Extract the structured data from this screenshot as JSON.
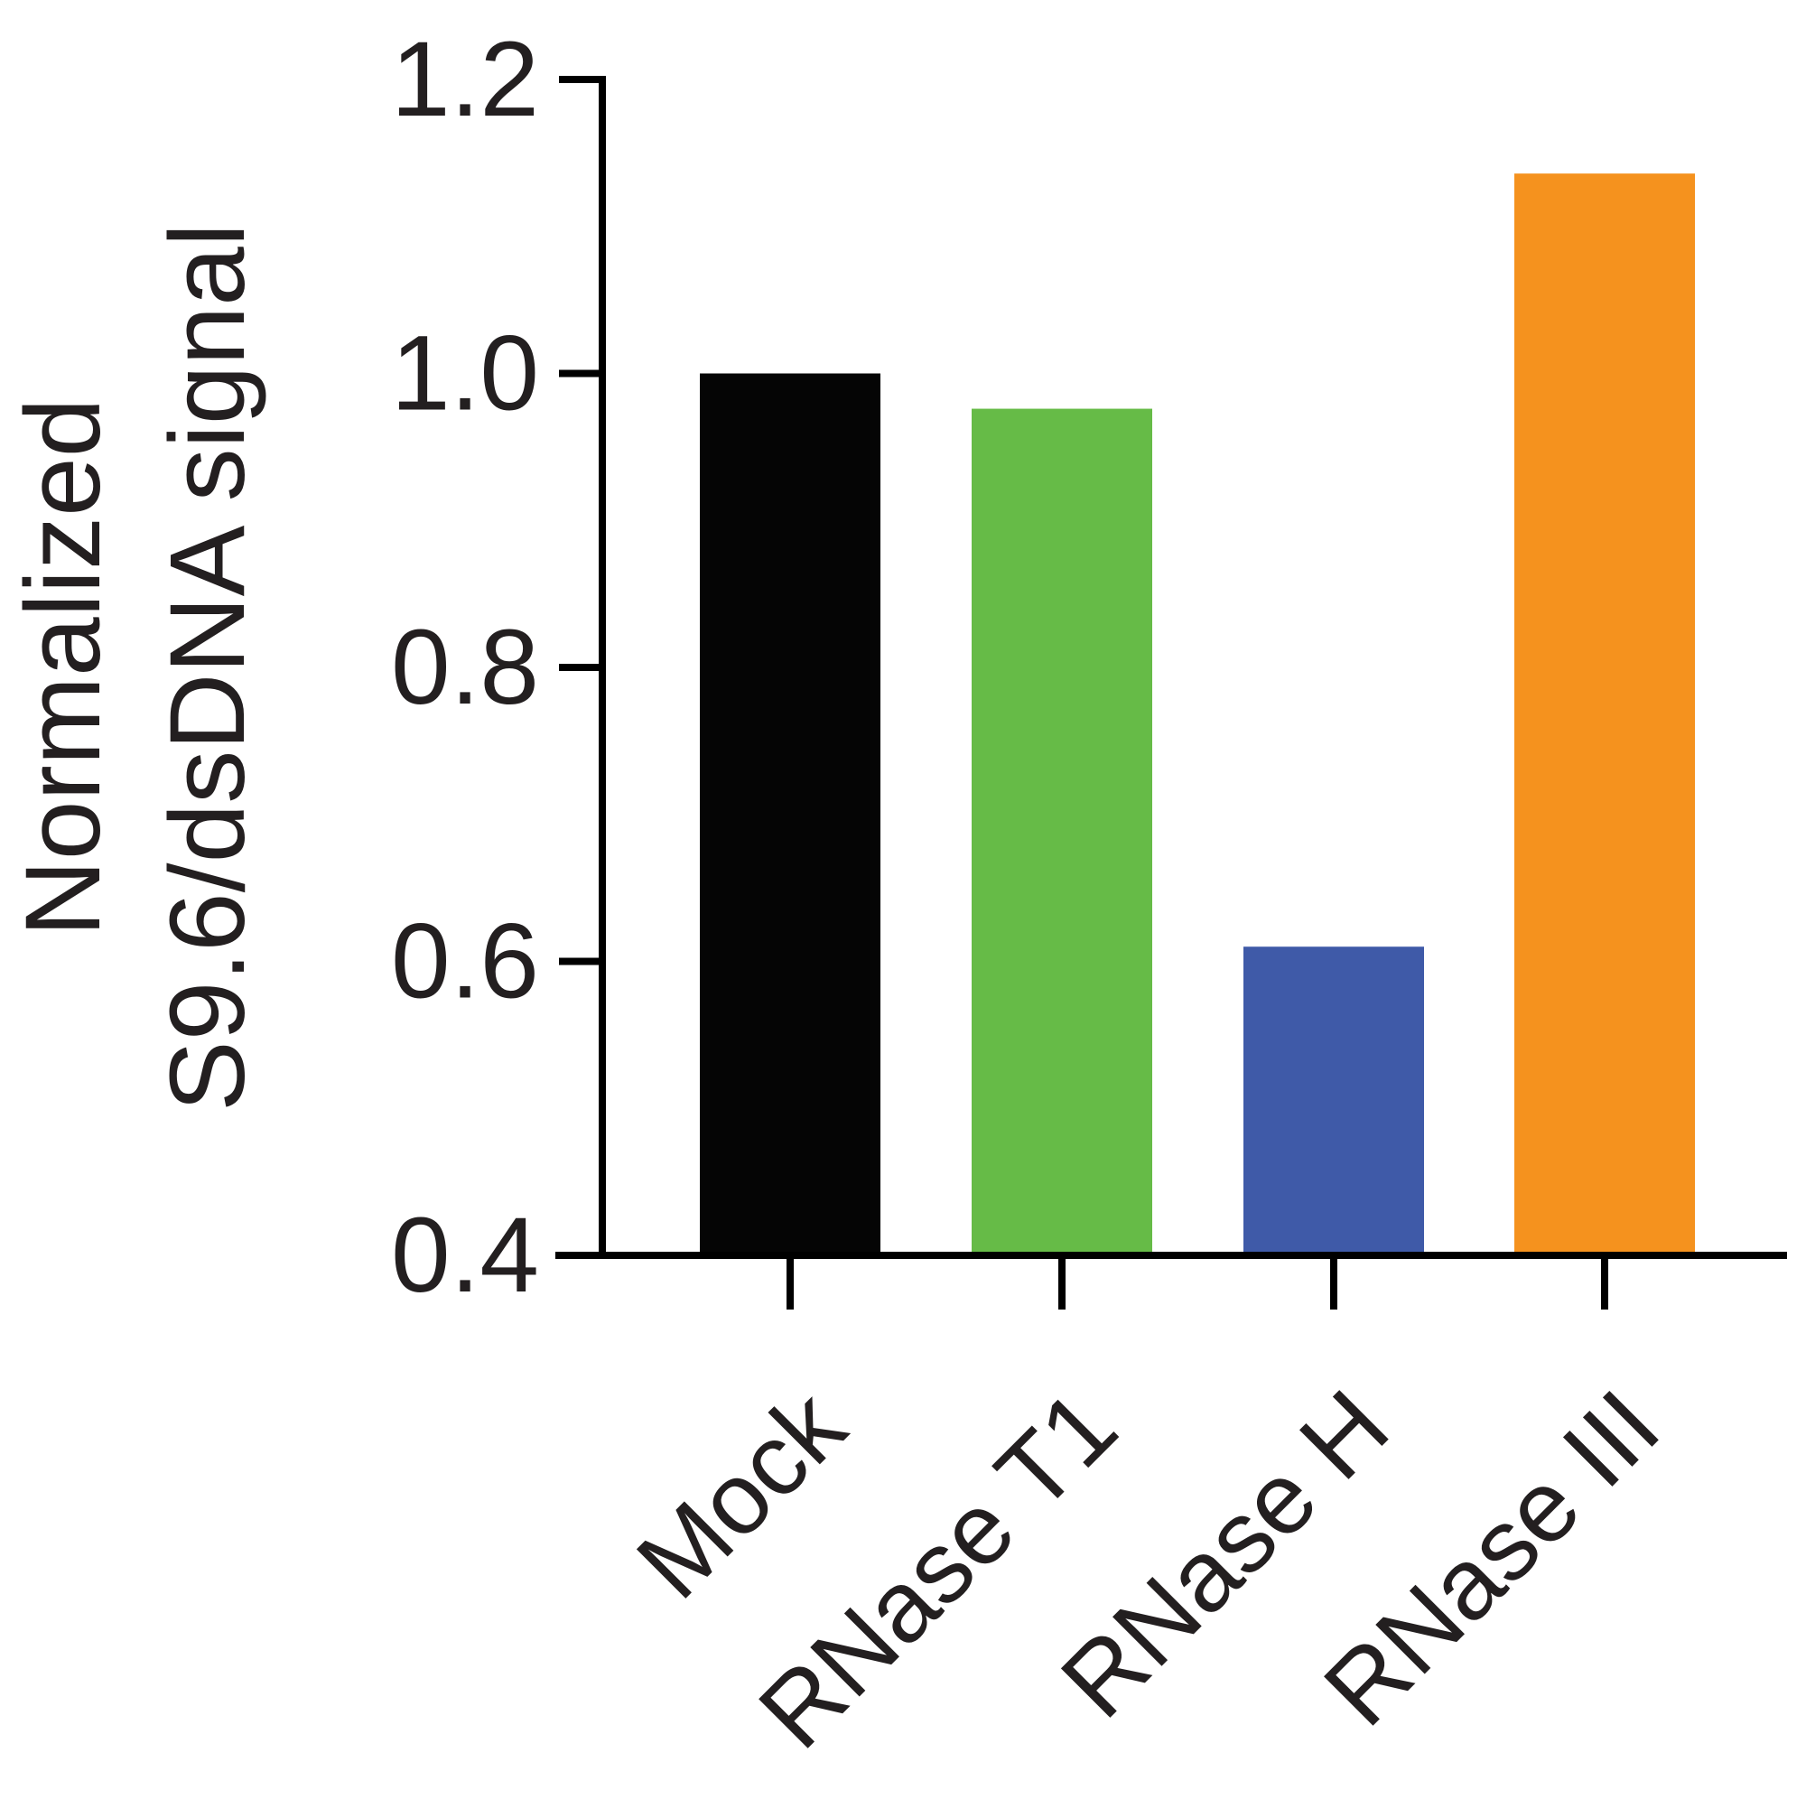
{
  "chart_data": {
    "type": "bar",
    "title": "",
    "xlabel": "",
    "ylabel": [
      "Normalized",
      "S9.6/dsDNA signal"
    ],
    "categories": [
      "Mock",
      "RNase T1",
      "RNase H",
      "RNase III"
    ],
    "values": [
      1.0,
      0.976,
      0.61,
      1.136
    ],
    "colors": [
      "#050505",
      "#66bb47",
      "#3f5aa8",
      "#f5921e"
    ],
    "ylim": [
      0.4,
      1.2
    ],
    "yticks": [
      {
        "value": 0.4,
        "label": "0.4"
      },
      {
        "value": 0.6,
        "label": "0.6"
      },
      {
        "value": 0.8,
        "label": "0.8"
      },
      {
        "value": 1.0,
        "label": "1.0"
      },
      {
        "value": 1.2,
        "label": "1.2"
      }
    ],
    "grid": false,
    "legend": "none",
    "x_tick_label_rotation_deg": -45
  }
}
